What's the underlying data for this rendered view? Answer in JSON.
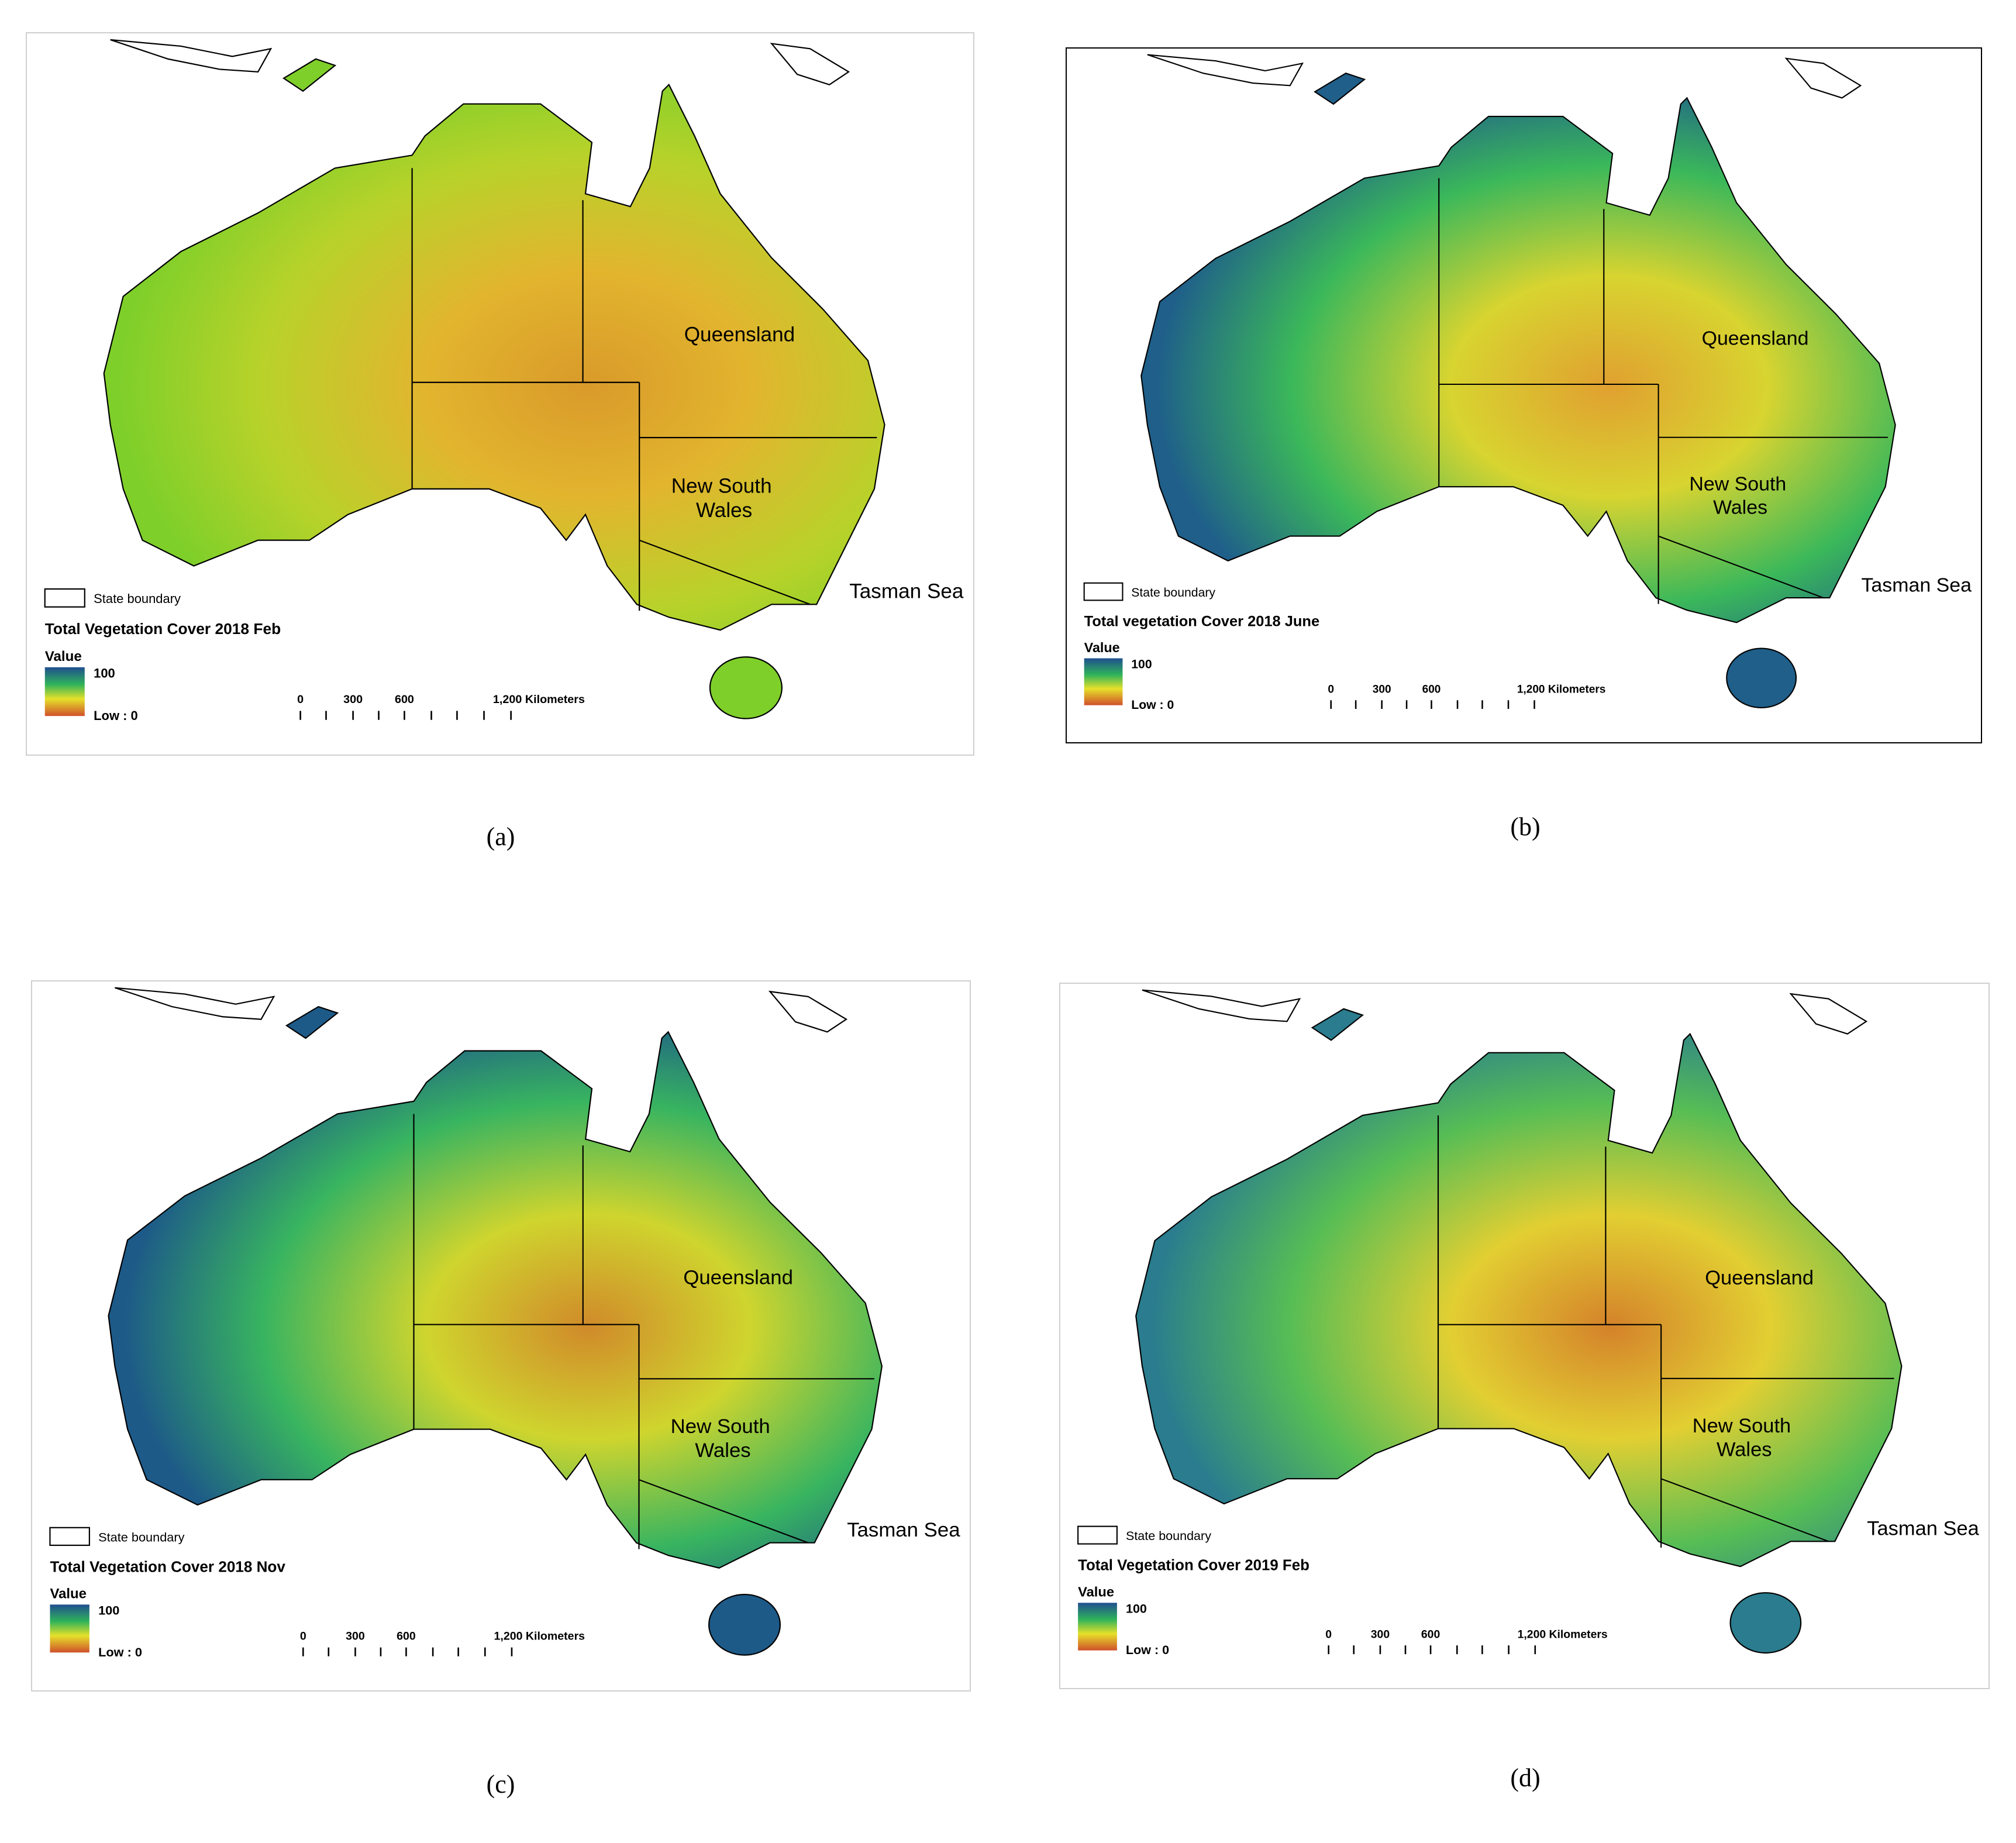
{
  "panels": [
    {
      "caption": "(a)",
      "legend": {
        "boundary": "State boundary",
        "title": "Total Vegetation Cover 2018 Feb",
        "value": "Value",
        "high": "100",
        "low": "Low : 0"
      },
      "scale": [
        "0",
        "300",
        "600",
        "1,200 Kilometers"
      ],
      "places": {
        "queensland": "Queensland",
        "nsw": [
          "New South",
          "Wales"
        ],
        "sea": "Tasman Sea"
      }
    },
    {
      "caption": "(b)",
      "legend": {
        "boundary": "State boundary",
        "title": "Total vegetation Cover 2018 June",
        "value": "Value",
        "high": "100",
        "low": "Low : 0"
      },
      "scale": [
        "0",
        "300",
        "600",
        "1,200 Kilometers"
      ],
      "places": {
        "queensland": "Queensland",
        "nsw": [
          "New South",
          "Wales"
        ],
        "sea": "Tasman Sea"
      }
    },
    {
      "caption": "(c)",
      "legend": {
        "boundary": "State boundary",
        "title": "Total Vegetation Cover 2018 Nov",
        "value": "Value",
        "high": "100",
        "low": "Low : 0"
      },
      "scale": [
        "0",
        "300",
        "600",
        "1,200 Kilometers"
      ],
      "places": {
        "queensland": "Queensland",
        "nsw": [
          "New South",
          "Wales"
        ],
        "sea": "Tasman Sea"
      }
    },
    {
      "caption": "(d)",
      "legend": {
        "boundary": "State boundary",
        "title": "Total Vegetation Cover 2019 Feb",
        "value": "Value",
        "high": "100",
        "low": "Low : 0"
      },
      "scale": [
        "0",
        "300",
        "600",
        "1,200 Kilometers"
      ],
      "places": {
        "queensland": "Queensland",
        "nsw": [
          "New South",
          "Wales"
        ],
        "sea": "Tasman Sea"
      }
    }
  ]
}
